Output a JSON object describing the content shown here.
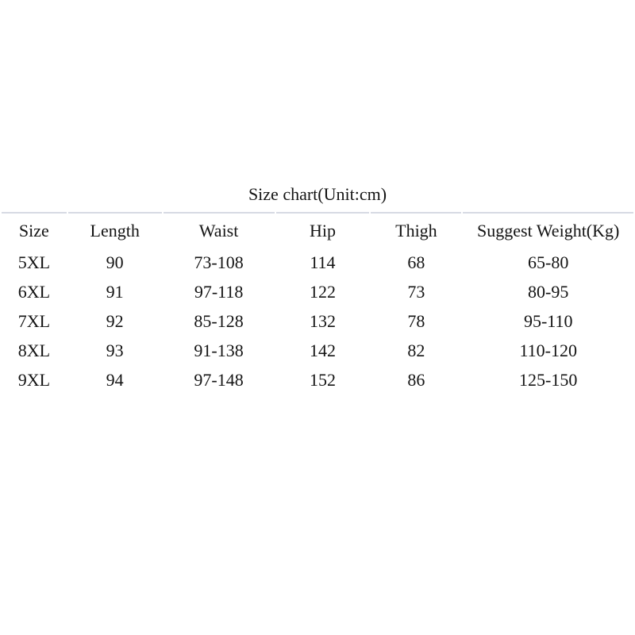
{
  "page": {
    "background_color": "#ffffff",
    "text_color": "#141414",
    "divider_color": "#d7dae3"
  },
  "size_chart": {
    "title": "Size chart(Unit:cm)",
    "columns": [
      "Size",
      "Length",
      "Waist",
      "Hip",
      "Thigh",
      "Suggest Weight(Kg)"
    ],
    "rows": [
      [
        "5XL",
        "90",
        "73-108",
        "114",
        "68",
        "65-80"
      ],
      [
        "6XL",
        "91",
        "97-118",
        "122",
        "73",
        "80-95"
      ],
      [
        "7XL",
        "92",
        "85-128",
        "132",
        "78",
        "95-110"
      ],
      [
        "8XL",
        "93",
        "91-138",
        "142",
        "82",
        "110-120"
      ],
      [
        "9XL",
        "94",
        "97-148",
        "152",
        "86",
        "125-150"
      ]
    ]
  },
  "chart_data": {
    "type": "table",
    "title": "Size chart(Unit:cm)",
    "unit": "cm",
    "columns": [
      "Size",
      "Length",
      "Waist",
      "Hip",
      "Thigh",
      "Suggest Weight(Kg)"
    ],
    "rows": [
      {
        "size": "5XL",
        "length": 90,
        "waist": "73-108",
        "hip": 114,
        "thigh": 68,
        "suggest_weight_kg": "65-80"
      },
      {
        "size": "6XL",
        "length": 91,
        "waist": "97-118",
        "hip": 122,
        "thigh": 73,
        "suggest_weight_kg": "80-95"
      },
      {
        "size": "7XL",
        "length": 92,
        "waist": "85-128",
        "hip": 132,
        "thigh": 78,
        "suggest_weight_kg": "95-110"
      },
      {
        "size": "8XL",
        "length": 93,
        "waist": "91-138",
        "hip": 142,
        "thigh": 82,
        "suggest_weight_kg": "110-120"
      },
      {
        "size": "9XL",
        "length": 94,
        "waist": "97-148",
        "hip": 152,
        "thigh": 86,
        "suggest_weight_kg": "125-150"
      }
    ],
    "layout": {
      "header_divider": true,
      "gridlines": "top-border-only",
      "text_align": "center"
    }
  }
}
